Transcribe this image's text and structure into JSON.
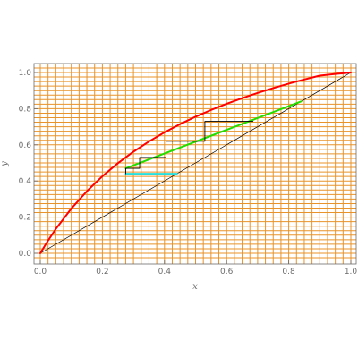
{
  "chart_data": {
    "type": "line",
    "xlabel": "x",
    "ylabel": "y",
    "xlim": [
      0,
      1
    ],
    "ylim": [
      0,
      1
    ],
    "x_ticks": [
      0.0,
      0.2,
      0.4,
      0.6,
      0.8,
      1.0
    ],
    "y_ticks": [
      0.0,
      0.2,
      0.4,
      0.6,
      0.8,
      1.0
    ],
    "x_tick_labels": [
      "0.0",
      "0.2",
      "0.4",
      "0.6",
      "0.8",
      "1.0"
    ],
    "y_tick_labels": [
      "0.0",
      "0.2",
      "0.4",
      "0.6",
      "0.8",
      "1.0"
    ],
    "grid": true,
    "grid_step": 0.025,
    "colors": {
      "grid": "#e8932a",
      "equilibrium_curve": "#ff0000",
      "diagonal": "#000000",
      "operating_line": "#22dd00",
      "feed_line": "#22e0e0",
      "stages": "#000000"
    },
    "series": [
      {
        "style": "red-curve",
        "x": [
          0,
          0.025,
          0.05,
          0.1,
          0.15,
          0.2,
          0.25,
          0.3,
          0.35,
          0.4,
          0.45,
          0.5,
          0.55,
          0.6,
          0.65,
          0.7,
          0.75,
          0.8,
          0.85,
          0.9,
          0.95,
          1.0
        ],
        "y": [
          0,
          0.0704,
          0.1346,
          0.2474,
          0.3434,
          0.4262,
          0.4984,
          0.562,
          0.6185,
          0.6689,
          0.7143,
          0.7554,
          0.7927,
          0.8268,
          0.8582,
          0.887,
          0.9137,
          0.9384,
          0.9614,
          0.9828,
          0.9917,
          1.0
        ]
      },
      {
        "style": "diagonal",
        "x": [
          0,
          1
        ],
        "y": [
          0,
          1
        ]
      },
      {
        "style": "green-line",
        "x": [
          0.275,
          0.84
        ],
        "y": [
          0.47,
          0.84
        ]
      },
      {
        "style": "cyan-line",
        "x": [
          0.275,
          0.44
        ],
        "y": [
          0.44,
          0.44
        ]
      },
      {
        "style": "stage-steps",
        "x": [
          0.275,
          0.275,
          0.32,
          0.32,
          0.405,
          0.405,
          0.53,
          0.53,
          0.685
        ],
        "y": [
          0.44,
          0.47,
          0.47,
          0.53,
          0.53,
          0.62,
          0.62,
          0.73,
          0.73
        ]
      }
    ]
  }
}
